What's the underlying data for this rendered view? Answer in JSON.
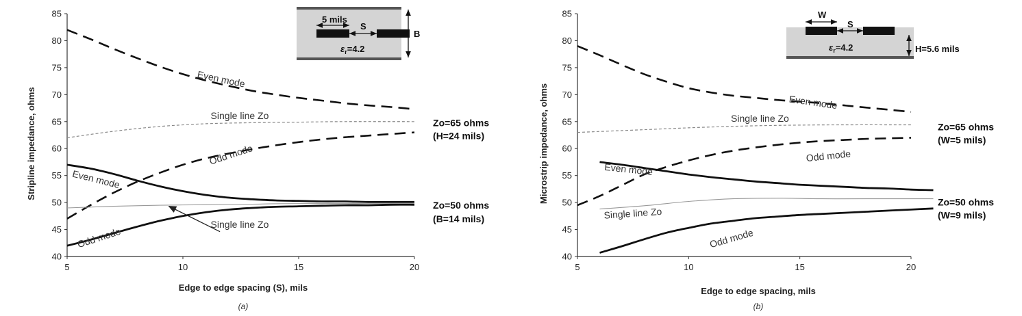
{
  "chart_data": [
    {
      "type": "line",
      "panel_label": "(a)",
      "ylabel": "Stripline impedance, ohms",
      "xlabel": "Edge to edge spacing (S), mils",
      "xlim": [
        5,
        20
      ],
      "ylim": [
        40,
        85
      ],
      "xticks": [
        5,
        10,
        15,
        20
      ],
      "yticks": [
        40,
        45,
        50,
        55,
        60,
        65,
        70,
        75,
        80,
        85
      ],
      "grid": false,
      "series": [
        {
          "name": "Even mode",
          "group": "Zo=65 ohms (H=24 mils)",
          "style": "long-dash",
          "x": [
            5,
            6,
            7,
            8,
            9,
            10,
            11,
            12,
            13,
            14,
            15,
            16,
            17,
            18,
            19,
            20
          ],
          "y": [
            82,
            80.3,
            78.5,
            76.8,
            75.2,
            73.8,
            72.6,
            71.6,
            70.7,
            70,
            69.4,
            68.9,
            68.4,
            68,
            67.7,
            67.3
          ]
        },
        {
          "name": "Single line Zo",
          "group": "Zo=65 ohms (H=24 mils)",
          "style": "short-dash",
          "x": [
            5,
            7,
            9,
            11,
            13,
            15,
            17,
            20
          ],
          "y": [
            62,
            63.2,
            64.1,
            64.6,
            64.8,
            64.9,
            65,
            65
          ]
        },
        {
          "name": "Odd mode",
          "group": "Zo=65 ohms (H=24 mils)",
          "style": "long-dash",
          "x": [
            5,
            6,
            7,
            8,
            9,
            10,
            11,
            12,
            13,
            14,
            15,
            16,
            17,
            18,
            19,
            20
          ],
          "y": [
            47,
            49.5,
            51.8,
            53.8,
            55.5,
            57,
            58.2,
            59.1,
            59.9,
            60.6,
            61.2,
            61.7,
            62.1,
            62.4,
            62.7,
            63
          ]
        },
        {
          "name": "Even mode",
          "group": "Zo=50 ohms (B=14 mils)",
          "style": "thick-solid",
          "x": [
            5,
            6,
            7,
            8,
            9,
            10,
            11,
            12,
            13,
            14,
            15,
            16,
            17,
            18,
            19,
            20
          ],
          "y": [
            57,
            56.3,
            55.3,
            54.1,
            53,
            52.1,
            51.4,
            50.9,
            50.6,
            50.4,
            50.3,
            50.2,
            50.2,
            50.1,
            50.1,
            50.1
          ]
        },
        {
          "name": "Single line Zo",
          "group": "Zo=50 ohms (B=14 mils)",
          "style": "thin-solid",
          "x": [
            5,
            7,
            9,
            11,
            13,
            15,
            20
          ],
          "y": [
            49,
            49.3,
            49.5,
            49.6,
            49.7,
            49.8,
            49.8
          ]
        },
        {
          "name": "Odd mode",
          "group": "Zo=50 ohms (B=14 mils)",
          "style": "thick-solid",
          "x": [
            5,
            6,
            7,
            8,
            9,
            10,
            11,
            12,
            13,
            14,
            15,
            16,
            17,
            18,
            19,
            20
          ],
          "y": [
            42,
            43.1,
            44.3,
            45.5,
            46.6,
            47.5,
            48.2,
            48.7,
            49,
            49.2,
            49.3,
            49.4,
            49.5,
            49.5,
            49.6,
            49.6
          ]
        }
      ],
      "curve_labels": [
        {
          "text": "Even mode",
          "x": 10.6,
          "y": 73.2,
          "rotate": 12
        },
        {
          "text": "Single line Zo",
          "x": 11.2,
          "y": 65.5,
          "rotate": 0
        },
        {
          "text": "Odd mode",
          "x": 11.2,
          "y": 57.0,
          "rotate": -18
        },
        {
          "text": "Even mode",
          "x": 5.2,
          "y": 54.8,
          "rotate": 14
        },
        {
          "text": "Single line Zo",
          "x": 11.2,
          "y": 45.3,
          "rotate": 0
        },
        {
          "text": "Odd mode",
          "x": 5.5,
          "y": 41.6,
          "rotate": -18
        }
      ],
      "annotations": [
        {
          "text": "Zo=65 ohms",
          "x": 20.8,
          "y": 64.8
        },
        {
          "text": "(H=24 mils)",
          "x": 20.8,
          "y": 62.4
        },
        {
          "text": "Zo=50 ohms",
          "x": 20.8,
          "y": 49.5
        },
        {
          "text": "(B=14 mils)",
          "x": 20.8,
          "y": 47.0
        }
      ],
      "arrow": {
        "from": [
          11.6,
          44.6
        ],
        "to": [
          9.4,
          49.3
        ]
      },
      "inset": {
        "labels": [
          "5 mils",
          "S",
          "B"
        ],
        "er_value": "=4.2"
      }
    },
    {
      "type": "line",
      "panel_label": "(b)",
      "ylabel": "Microstrip impedance, ohms",
      "xlabel": "Edge to edge spacing, mils",
      "xlim": [
        5,
        20
      ],
      "ylim": [
        40,
        85
      ],
      "xticks": [
        5,
        10,
        15,
        20
      ],
      "yticks": [
        40,
        45,
        50,
        55,
        60,
        65,
        70,
        75,
        80,
        85
      ],
      "grid": false,
      "series": [
        {
          "name": "Even mode",
          "group": "Zo=65 ohms (W=5 mils)",
          "style": "long-dash",
          "x": [
            5,
            6,
            7,
            8,
            9,
            10,
            11,
            12,
            13,
            14,
            15,
            16,
            17,
            18,
            19,
            20
          ],
          "y": [
            79,
            77.3,
            75.5,
            73.8,
            72.4,
            71.2,
            70.4,
            69.8,
            69.4,
            69,
            68.7,
            68.4,
            68,
            67.6,
            67.2,
            66.8
          ]
        },
        {
          "name": "Single line Zo",
          "group": "Zo=65 ohms (W=5 mils)",
          "style": "short-dash",
          "x": [
            5,
            8,
            11,
            14,
            17,
            20
          ],
          "y": [
            63,
            63.5,
            64,
            64.3,
            64.4,
            64.4
          ]
        },
        {
          "name": "Odd mode",
          "group": "Zo=65 ohms (W=5 mils)",
          "style": "long-dash",
          "x": [
            5,
            6,
            7,
            8,
            9,
            10,
            11,
            12,
            13,
            14,
            15,
            16,
            17,
            18,
            19,
            20
          ],
          "y": [
            49.5,
            51.2,
            53.2,
            55.2,
            56.6,
            57.8,
            58.8,
            59.6,
            60.2,
            60.7,
            61.1,
            61.4,
            61.6,
            61.8,
            61.9,
            62
          ]
        },
        {
          "name": "Even mode",
          "group": "Zo=50 ohms (W=9 mils)",
          "style": "thick-solid",
          "x": [
            6,
            7,
            8,
            9,
            10,
            11,
            12,
            13,
            14,
            15,
            16,
            17,
            18,
            19,
            20,
            21
          ],
          "y": [
            57.5,
            57,
            56.4,
            55.8,
            55.2,
            54.7,
            54.3,
            53.9,
            53.6,
            53.3,
            53.1,
            52.9,
            52.7,
            52.6,
            52.4,
            52.3
          ]
        },
        {
          "name": "Single line Zo",
          "group": "Zo=50 ohms (W=9 mils)",
          "style": "thin-solid",
          "x": [
            6,
            8,
            10,
            12,
            14,
            16,
            18,
            21
          ],
          "y": [
            48.8,
            49.4,
            50.2,
            50.7,
            50.8,
            50.7,
            50.7,
            50.7
          ]
        },
        {
          "name": "Odd mode",
          "group": "Zo=50 ohms (W=9 mils)",
          "style": "thick-solid",
          "x": [
            6,
            7,
            8,
            9,
            10,
            11,
            12,
            13,
            14,
            15,
            16,
            17,
            18,
            19,
            20,
            21
          ],
          "y": [
            40.7,
            41.9,
            43.2,
            44.4,
            45.3,
            46.1,
            46.6,
            47.1,
            47.4,
            47.7,
            47.9,
            48.1,
            48.3,
            48.5,
            48.7,
            48.9
          ]
        }
      ],
      "curve_labels": [
        {
          "text": "Even mode",
          "x": 14.5,
          "y": 68.6,
          "rotate": 8
        },
        {
          "text": "Single line Zo",
          "x": 11.9,
          "y": 65.0,
          "rotate": 0
        },
        {
          "text": "Odd mode",
          "x": 15.3,
          "y": 57.6,
          "rotate": -6
        },
        {
          "text": "Even mode",
          "x": 6.2,
          "y": 56.0,
          "rotate": 6
        },
        {
          "text": "Single line Zo",
          "x": 6.2,
          "y": 47.0,
          "rotate": -4
        },
        {
          "text": "Odd mode",
          "x": 11.0,
          "y": 41.6,
          "rotate": -16
        }
      ],
      "annotations": [
        {
          "text": "Zo=65 ohms",
          "x": 21.2,
          "y": 64.0
        },
        {
          "text": "(W=5 mils)",
          "x": 21.2,
          "y": 61.6
        },
        {
          "text": "Zo=50 ohms",
          "x": 21.2,
          "y": 50.1
        },
        {
          "text": "(W=9 mils)",
          "x": 21.2,
          "y": 47.7
        }
      ],
      "inset": {
        "labels": [
          "W",
          "S",
          "H=5.6 mils"
        ],
        "er_value": "=4.2"
      }
    }
  ]
}
